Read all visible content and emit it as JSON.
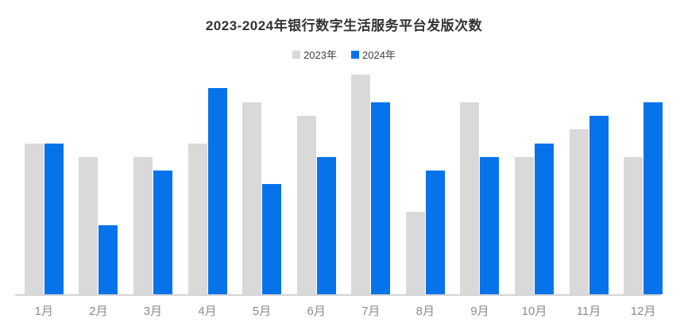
{
  "title": "2023-2024年银行数字生活服务平台发版次数",
  "legend": {
    "items": [
      {
        "label": "2023年",
        "color": "#d9d9d9"
      },
      {
        "label": "2024年",
        "color": "#0673eb"
      }
    ]
  },
  "colors": {
    "background": "#ffffff",
    "title_text": "#333333",
    "legend_text": "#404040",
    "series_2023": "#d9d9d9",
    "series_2024": "#0673eb",
    "axis_line": "#d4d4d4",
    "tick_label": "#8c8c8c"
  },
  "chart_data": {
    "type": "bar",
    "title": "2023-2024年银行数字生活服务平台发版次数",
    "categories": [
      "1月",
      "2月",
      "3月",
      "4月",
      "5月",
      "6月",
      "7月",
      "8月",
      "9月",
      "10月",
      "11月",
      "12月"
    ],
    "series": [
      {
        "name": "2023年",
        "color": "#d9d9d9",
        "values": [
          11,
          10,
          10,
          11,
          14,
          13,
          16,
          6,
          14,
          10,
          12,
          10
        ]
      },
      {
        "name": "2024年",
        "color": "#0673eb",
        "values": [
          11,
          5,
          9,
          15,
          8,
          10,
          14,
          9,
          10,
          11,
          13,
          14
        ]
      }
    ],
    "xlabel": "",
    "ylabel": "",
    "ylim": [
      0,
      16
    ],
    "y_axis_visible": false,
    "grid": false,
    "legend_position": "top"
  }
}
